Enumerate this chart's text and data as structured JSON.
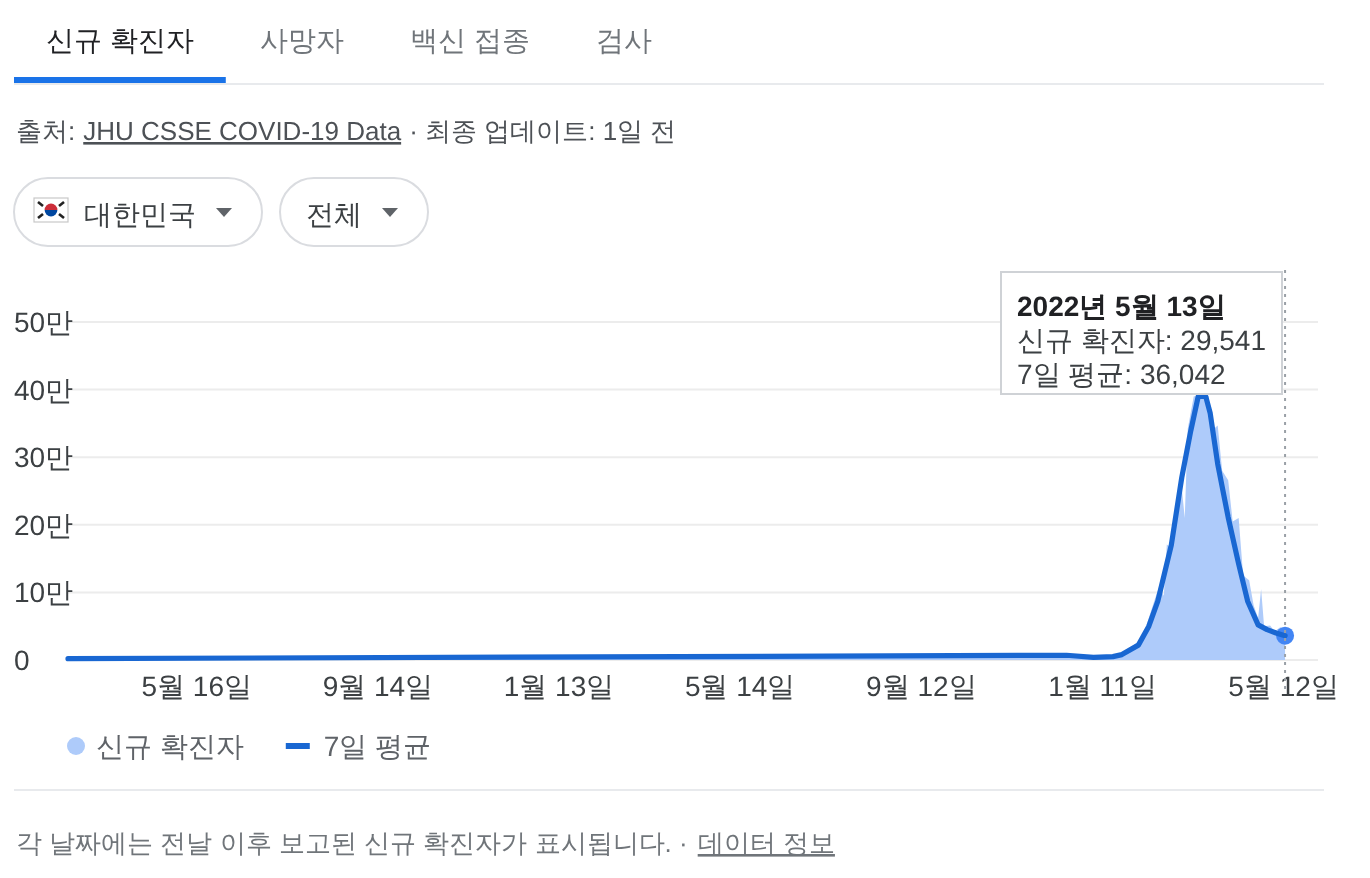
{
  "chart_data": {
    "type": "line",
    "title": "신규 확진자",
    "xlim": [
      "2020-02-20",
      "2022-06-04"
    ],
    "xticks": [
      {
        "value": "2020-05-16",
        "label": "5월 16일"
      },
      {
        "value": "2020-09-14",
        "label": "9월 14일"
      },
      {
        "value": "2021-01-13",
        "label": "1월 13일"
      },
      {
        "value": "2021-05-14",
        "label": "5월 14일"
      },
      {
        "value": "2021-09-12",
        "label": "9월 12일"
      },
      {
        "value": "2022-01-11",
        "label": "1월 11일"
      },
      {
        "value": "2022-05-12",
        "label": "5월 12일"
      }
    ],
    "ylim": [
      0,
      50
    ],
    "yticks": [
      0,
      {
        "value": 10,
        "label": "10만"
      },
      {
        "value": 20,
        "label": "20만"
      },
      {
        "value": 30,
        "label": "30만"
      },
      {
        "value": 40,
        "label": "40만"
      },
      {
        "value": 50,
        "label": "50만"
      }
    ],
    "grid": "y",
    "legend": "bottom",
    "series": [
      {
        "name": "신규 확진자",
        "type": "area",
        "color": "#aecbfa",
        "x": [
          "2020-03-01",
          "2021-12-15",
          "2022-01-05",
          "2022-01-18",
          "2022-01-26",
          "2022-02-04",
          "2022-02-09",
          "2022-02-15",
          "2022-02-18",
          "2022-02-21",
          "2022-02-23",
          "2022-02-26",
          "2022-03-02",
          "2022-03-05",
          "2022-03-07",
          "2022-03-09",
          "2022-03-13",
          "2022-03-23",
          "2022-03-25",
          "2022-03-29",
          "2022-04-01",
          "2022-04-05",
          "2022-04-08",
          "2022-04-12",
          "2022-04-15",
          "2022-04-19",
          "2022-04-22",
          "2022-04-25",
          "2022-04-27",
          "2022-04-29",
          "2022-05-03",
          "2022-05-06",
          "2022-05-10",
          "2022-05-13"
        ],
        "values": [
          0.2,
          0.8,
          0.4,
          0.6,
          1.3,
          2.7,
          4.9,
          9,
          10.9,
          9.5,
          17.1,
          16.6,
          21.9,
          25.4,
          21,
          34.2,
          39,
          39,
          33.9,
          34.7,
          28,
          26.6,
          20.5,
          21,
          12.5,
          11.8,
          8.1,
          6.2,
          10.5,
          5,
          5.1,
          4.2,
          4.9,
          2.9541
        ]
      },
      {
        "type": "scatter",
        "color": "#4285f4",
        "x": [
          "2022-05-13"
        ],
        "values": [
          3.6042
        ]
      },
      {
        "name": "7일 평균",
        "color": "#1967d2",
        "x": [
          "2020-02-20",
          "2021-12-18",
          "2022-01-05",
          "2022-01-18",
          "2022-01-24",
          "2022-02-04",
          "2022-02-11",
          "2022-02-17",
          "2022-02-26",
          "2022-03-05",
          "2022-03-11",
          "2022-03-16",
          "2022-03-21",
          "2022-03-24",
          "2022-03-29",
          "2022-04-05",
          "2022-04-12",
          "2022-04-18",
          "2022-04-25",
          "2022-05-01",
          "2022-05-07",
          "2022-05-13"
        ],
        "values": [
          0.2,
          0.7,
          0.4,
          0.5,
          0.8,
          2.2,
          5,
          8.7,
          17,
          27,
          33.9,
          39,
          39,
          36.5,
          29,
          21.1,
          14.2,
          8.7,
          5.2,
          4.5,
          4,
          3.6042
        ]
      }
    ],
    "ref_lines": [
      {
        "axis": "x",
        "value": "2022-05-13",
        "line_style": "dotted",
        "color": "#9aa0a6"
      }
    ],
    "annotations": [
      "사망자",
      "백신 접종",
      "검사",
      "출처:",
      "JHU CSSE COVID-19 Data",
      "· 최종 업데이트: 1일 전",
      "대한민국",
      "전체",
      "2022년 5월 13일\n신규 확진자: 29,541\n7일 평균: 36,042",
      "각 날짜에는 전날 이후 보고된 신규 확진자가 표시됩니다. ·",
      "데이터 정보"
    ]
  }
}
